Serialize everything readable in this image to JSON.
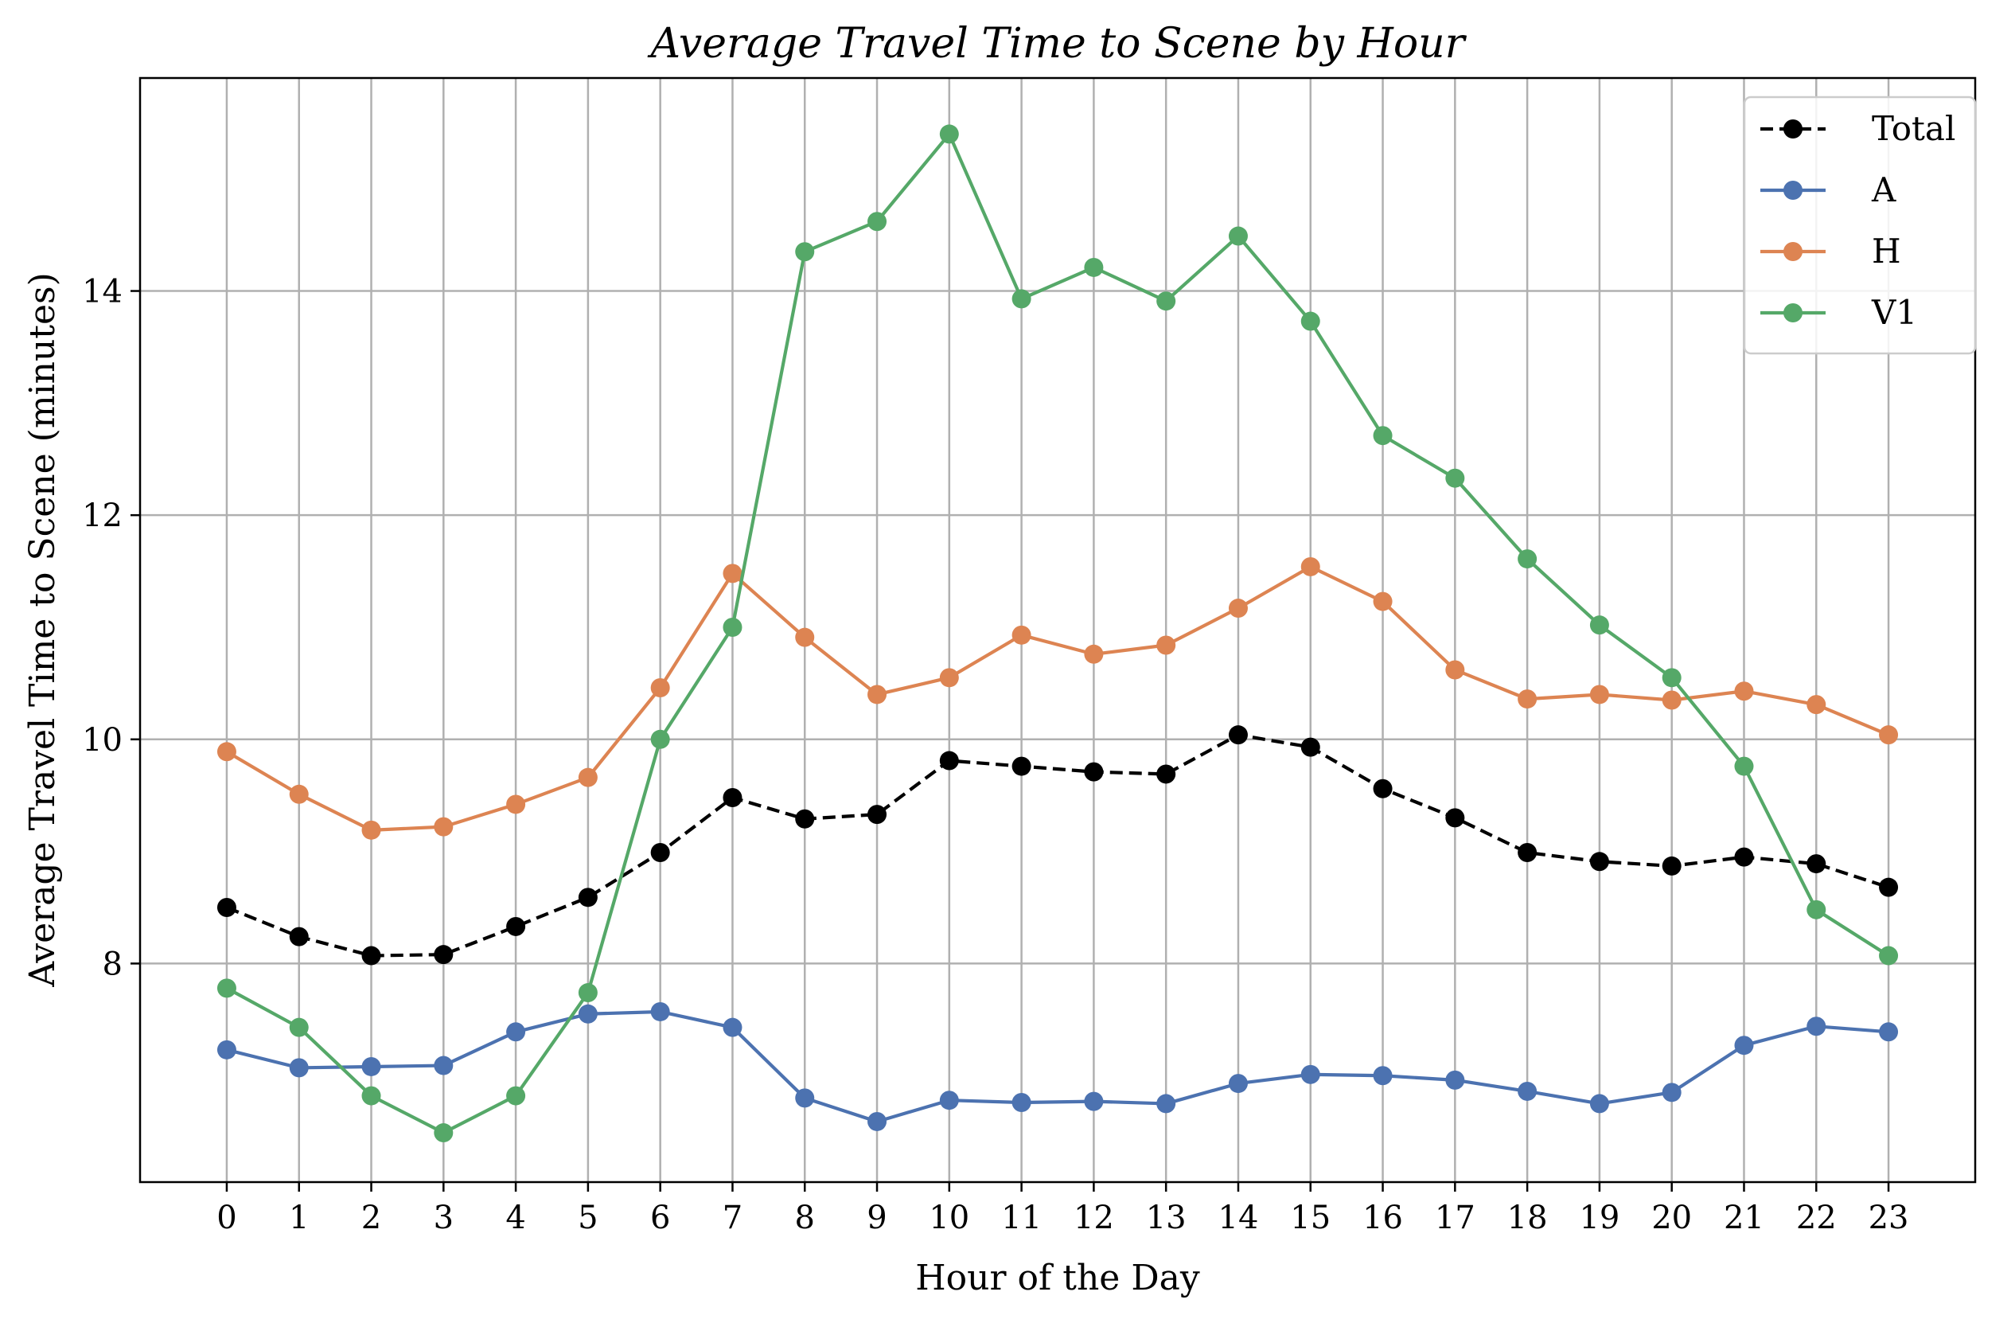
{
  "chart_data": {
    "type": "line",
    "title": "Average Travel Time to Scene by Hour",
    "xlabel": "Hour of the Day",
    "ylabel": "Average Travel Time to Scene (minutes)",
    "x": [
      0,
      1,
      2,
      3,
      4,
      5,
      6,
      7,
      8,
      9,
      10,
      11,
      12,
      13,
      14,
      15,
      16,
      17,
      18,
      19,
      20,
      21,
      22,
      23
    ],
    "xticks": [
      "0",
      "1",
      "2",
      "3",
      "4",
      "5",
      "6",
      "7",
      "8",
      "9",
      "10",
      "11",
      "12",
      "13",
      "14",
      "15",
      "16",
      "17",
      "18",
      "19",
      "20",
      "21",
      "22",
      "23"
    ],
    "yticks": [
      8,
      10,
      12,
      14
    ],
    "ytick_labels": [
      "8",
      "10",
      "12",
      "14"
    ],
    "xlim": [
      -1.2,
      24.2
    ],
    "ylim": [
      6.05,
      15.9
    ],
    "grid": true,
    "legend": "top-right",
    "series": [
      {
        "name": "Total",
        "color": "#000000",
        "dashed": true,
        "values": [
          8.5,
          8.24,
          8.07,
          8.08,
          8.33,
          8.59,
          8.99,
          9.48,
          9.29,
          9.33,
          9.81,
          9.76,
          9.71,
          9.69,
          10.04,
          9.93,
          9.56,
          9.3,
          8.99,
          8.91,
          8.87,
          8.95,
          8.89,
          8.68
        ]
      },
      {
        "name": "A",
        "color": "#4c72b0",
        "dashed": false,
        "values": [
          7.23,
          7.07,
          7.08,
          7.09,
          7.39,
          7.55,
          7.57,
          7.43,
          6.8,
          6.59,
          6.78,
          6.76,
          6.77,
          6.75,
          6.93,
          7.01,
          7.0,
          6.96,
          6.86,
          6.75,
          6.85,
          7.27,
          7.44,
          7.39
        ]
      },
      {
        "name": "H",
        "color": "#dd8452",
        "dashed": false,
        "values": [
          9.89,
          9.51,
          9.19,
          9.22,
          9.42,
          9.66,
          10.46,
          11.48,
          10.91,
          10.4,
          10.55,
          10.93,
          10.76,
          10.84,
          11.17,
          11.54,
          11.23,
          10.62,
          10.36,
          10.4,
          10.35,
          10.43,
          10.31,
          10.04
        ]
      },
      {
        "name": "V1",
        "color": "#55a868",
        "dashed": false,
        "values": [
          7.78,
          7.43,
          6.82,
          6.49,
          6.82,
          7.74,
          10.0,
          11.0,
          14.35,
          14.62,
          15.4,
          13.93,
          14.21,
          13.91,
          14.49,
          13.73,
          12.71,
          12.33,
          11.61,
          11.02,
          10.55,
          9.76,
          8.48,
          8.07
        ]
      }
    ]
  }
}
